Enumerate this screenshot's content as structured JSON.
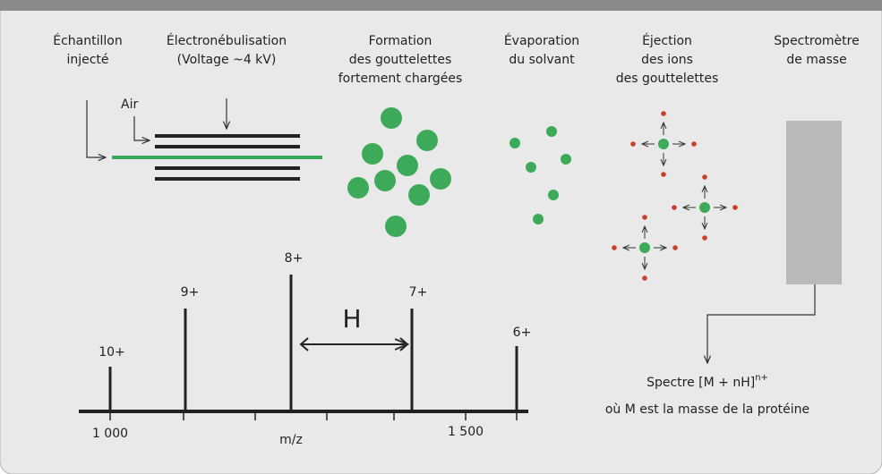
{
  "steps": [
    {
      "label": [
        "Échantillon",
        "injecté"
      ]
    },
    {
      "label": [
        "Électronébulisation",
        "(Voltage ~4 kV)"
      ]
    },
    {
      "label": [
        "Formation",
        "des gouttelettes",
        "fortement chargées"
      ]
    },
    {
      "label": [
        "Évaporation",
        "du solvant"
      ]
    },
    {
      "label": [
        "Éjection",
        "des ions",
        "des gouttelettes"
      ]
    },
    {
      "label": [
        "Spectromètre",
        "de masse"
      ]
    }
  ],
  "air": "Air",
  "spectrum": {
    "peaks": [
      "10+",
      "9+",
      "8+",
      "7+",
      "6+"
    ],
    "spacing": "H",
    "axis_ticks": [
      "1 000",
      "1 500"
    ],
    "axis_label": "m/z"
  },
  "result": {
    "line1": "Spectre [M + nH]",
    "superscript": "n+",
    "line2": "où M est la masse de la protéine"
  }
}
